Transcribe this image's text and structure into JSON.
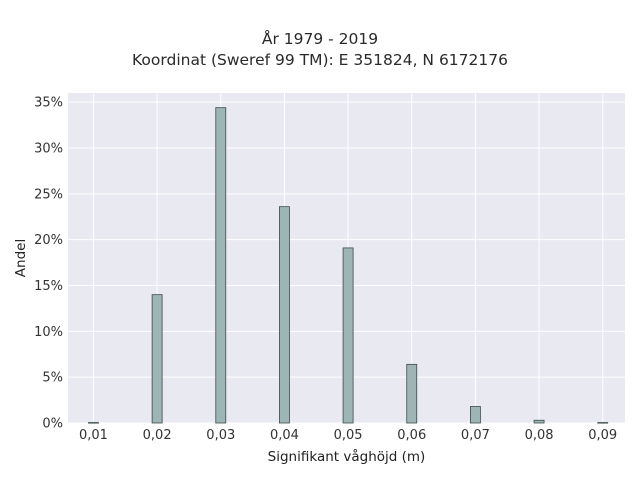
{
  "chart_data": {
    "type": "bar",
    "title": "År 1979 - 2019",
    "subtitle": "Koordinat (Sweref 99 TM): E 351824, N 6172176",
    "xlabel": "Signifikant våghöjd (m)",
    "ylabel": "Andel",
    "x_ticks": [
      "0,01",
      "0,02",
      "0,03",
      "0,04",
      "0,05",
      "0,06",
      "0,07",
      "0,08",
      "0,09"
    ],
    "y_ticks": [
      "0%",
      "5%",
      "10%",
      "15%",
      "20%",
      "25%",
      "30%",
      "35%"
    ],
    "xlim": [
      0.006,
      0.0935
    ],
    "ylim": [
      0,
      36
    ],
    "categories": [
      0.01,
      0.02,
      0.03,
      0.04,
      0.05,
      0.06,
      0.07,
      0.08,
      0.09
    ],
    "values": [
      0.05,
      14.0,
      34.4,
      23.6,
      19.1,
      6.4,
      1.8,
      0.3,
      0.05
    ],
    "bar_color": "#9db5b5",
    "bar_edge_color": "#3d4a4a",
    "plot_background": "#e9e9f1",
    "grid_color": "#ffffff",
    "grid": true
  }
}
